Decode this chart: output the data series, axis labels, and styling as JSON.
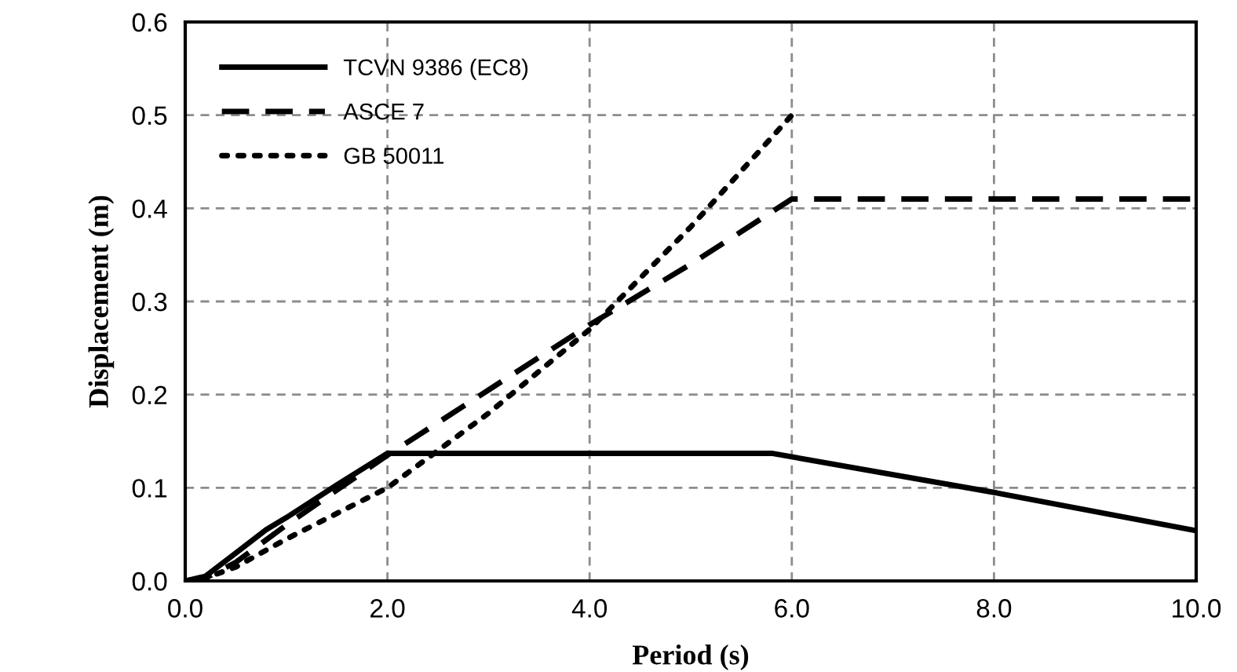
{
  "chart_data": {
    "type": "line",
    "xlabel": "Period (s)",
    "ylabel": "Displacement (m)",
    "xlim": [
      0,
      10
    ],
    "ylim": [
      0,
      0.6
    ],
    "xticks": [
      {
        "value": 0,
        "label": "0.0"
      },
      {
        "value": 2,
        "label": "2.0"
      },
      {
        "value": 4,
        "label": "4.0"
      },
      {
        "value": 6,
        "label": "6.0"
      },
      {
        "value": 8,
        "label": "8.0"
      },
      {
        "value": 10,
        "label": "10.0"
      }
    ],
    "yticks": [
      {
        "value": 0,
        "label": "0.0"
      },
      {
        "value": 0.1,
        "label": "0.1"
      },
      {
        "value": 0.2,
        "label": "0.2"
      },
      {
        "value": 0.3,
        "label": "0.3"
      },
      {
        "value": 0.4,
        "label": "0.4"
      },
      {
        "value": 0.5,
        "label": "0.5"
      },
      {
        "value": 0.6,
        "label": "0.6"
      }
    ],
    "grid": true,
    "legend": "top left",
    "series": [
      {
        "name": "TCVN 9386 (EC8)",
        "color": "#000000",
        "line_style": "solid",
        "x": [
          0,
          0.2,
          0.5,
          0.8,
          1.0,
          1.5,
          2.0,
          4.0,
          5.8,
          8.0,
          10.0
        ],
        "values": [
          0,
          0.005,
          0.03,
          0.055,
          0.068,
          0.103,
          0.137,
          0.137,
          0.137,
          0.095,
          0.054
        ]
      },
      {
        "name": "ASCE 7",
        "color": "#000000",
        "line_style": "dashed",
        "x": [
          0,
          0.2,
          0.5,
          1.0,
          2.0,
          3.0,
          4.0,
          5.0,
          6.0,
          8.0,
          10.0
        ],
        "values": [
          0,
          0.003,
          0.02,
          0.06,
          0.135,
          0.205,
          0.275,
          0.34,
          0.41,
          0.41,
          0.41
        ]
      },
      {
        "name": "GB 50011",
        "color": "#000000",
        "line_style": "dotted",
        "x": [
          0,
          0.2,
          0.5,
          1.0,
          2.0,
          3.0,
          4.0,
          5.0,
          6.0
        ],
        "values": [
          0,
          0.003,
          0.015,
          0.045,
          0.1,
          0.18,
          0.27,
          0.38,
          0.5
        ]
      }
    ]
  }
}
